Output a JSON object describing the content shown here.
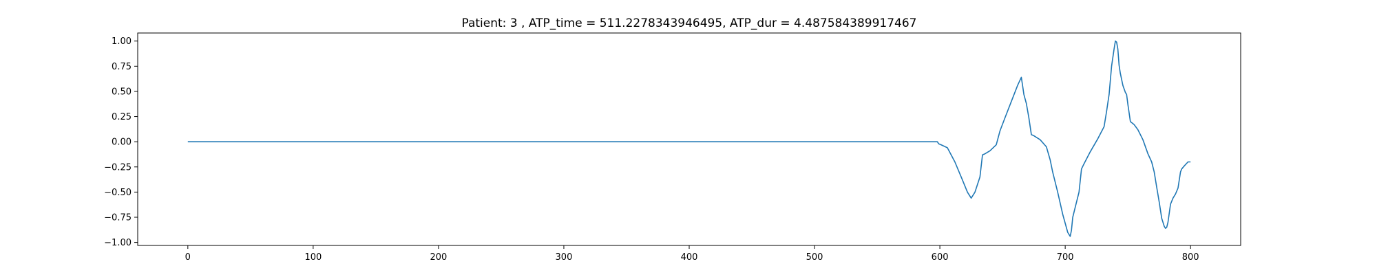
{
  "chart_data": {
    "type": "line",
    "title": "Patient: 3 , ATP_time = 511.2278343946495, ATP_dur = 4.487584389917467",
    "xlabel": "",
    "ylabel": "",
    "xlim": [
      -40,
      840
    ],
    "ylim": [
      -1.03,
      1.08
    ],
    "xticks": [
      0,
      100,
      200,
      300,
      400,
      500,
      600,
      700,
      800
    ],
    "yticks": [
      -1.0,
      -0.75,
      -0.5,
      -0.25,
      0.0,
      0.25,
      0.5,
      0.75,
      1.0
    ],
    "ytick_labels": [
      "−1.00",
      "−0.75",
      "−0.50",
      "−0.25",
      "0.00",
      "0.25",
      "0.50",
      "0.75",
      "1.00"
    ],
    "grid": false,
    "line_color": "#1f77b4",
    "series": [
      {
        "x": [
          0,
          100,
          200,
          300,
          400,
          500,
          598,
          599,
          601,
          606,
          612,
          618,
          622,
          625,
          628,
          632,
          634,
          636,
          640,
          645,
          648,
          652,
          657,
          662,
          665,
          666,
          667,
          669,
          671,
          673,
          675,
          680,
          685,
          688,
          690,
          694,
          698,
          702,
          704,
          705,
          706,
          708,
          711,
          713,
          715,
          720,
          726,
          731,
          733,
          735,
          737,
          739,
          740,
          741,
          742,
          743,
          744,
          746,
          748,
          749,
          750,
          752,
          755,
          758,
          762,
          766,
          769,
          771,
          773,
          775,
          777,
          779,
          780,
          781,
          782,
          784,
          786,
          788,
          790,
          792,
          793,
          795,
          798,
          800
        ],
        "y": [
          0,
          0,
          0,
          0,
          0,
          0,
          0,
          -0.02,
          -0.03,
          -0.06,
          -0.2,
          -0.38,
          -0.5,
          -0.56,
          -0.5,
          -0.35,
          -0.13,
          -0.12,
          -0.09,
          -0.03,
          0.11,
          0.24,
          0.4,
          0.56,
          0.64,
          0.56,
          0.47,
          0.38,
          0.24,
          0.07,
          0.06,
          0.02,
          -0.05,
          -0.18,
          -0.3,
          -0.5,
          -0.72,
          -0.9,
          -0.94,
          -0.88,
          -0.75,
          -0.65,
          -0.5,
          -0.27,
          -0.22,
          -0.1,
          0.03,
          0.15,
          0.3,
          0.47,
          0.75,
          0.92,
          1.0,
          0.99,
          0.92,
          0.76,
          0.68,
          0.56,
          0.49,
          0.47,
          0.37,
          0.2,
          0.17,
          0.12,
          0.02,
          -0.12,
          -0.2,
          -0.3,
          -0.45,
          -0.6,
          -0.76,
          -0.84,
          -0.86,
          -0.85,
          -0.8,
          -0.62,
          -0.56,
          -0.52,
          -0.46,
          -0.3,
          -0.27,
          -0.24,
          -0.2,
          -0.2
        ]
      }
    ]
  }
}
